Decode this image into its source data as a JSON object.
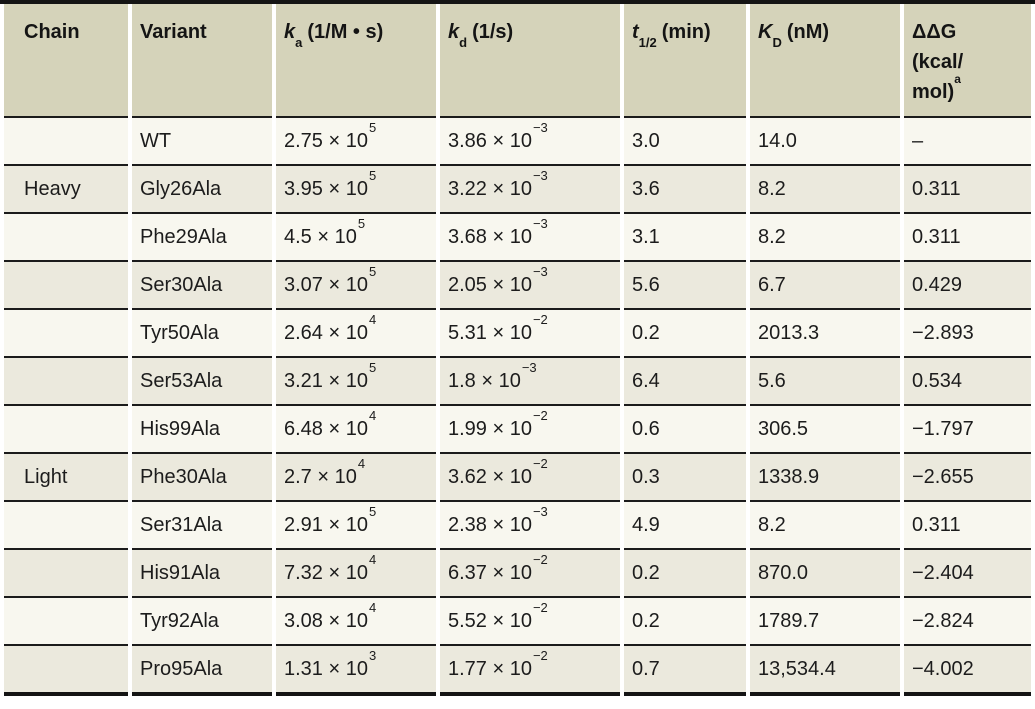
{
  "table": {
    "columns": {
      "chain": "Chain",
      "variant": "Variant",
      "ka": {
        "sym": "k",
        "sub": "a",
        "unit": "(1/M • s)"
      },
      "kd": {
        "sym": "k",
        "sub": "d",
        "unit": "(1/s)"
      },
      "thalf": {
        "sym": "t",
        "sub": "1/2",
        "unit": "(min)"
      },
      "kD": {
        "sym": "K",
        "sub": "D",
        "unit": "(nM)"
      },
      "ddg": {
        "line1": "ΔΔG",
        "line2": "(kcal/",
        "line3": "mol)",
        "sup": "a"
      }
    },
    "rows": [
      {
        "chain": "",
        "variant": "WT",
        "ka_base": "2.75 × 10",
        "ka_exp": "5",
        "kd_base": "3.86 × 10",
        "kd_exp": "−3",
        "t_half": "3.0",
        "kd_nm": "14.0",
        "ddg": "–"
      },
      {
        "chain": "Heavy",
        "variant": "Gly26Ala",
        "ka_base": "3.95 × 10",
        "ka_exp": "5",
        "kd_base": "3.22 × 10",
        "kd_exp": "−3",
        "t_half": "3.6",
        "kd_nm": "8.2",
        "ddg": "0.311"
      },
      {
        "chain": "",
        "variant": "Phe29Ala",
        "ka_base": "4.5 × 10",
        "ka_exp": "5",
        "kd_base": "3.68 × 10",
        "kd_exp": "−3",
        "t_half": "3.1",
        "kd_nm": "8.2",
        "ddg": "0.311"
      },
      {
        "chain": "",
        "variant": "Ser30Ala",
        "ka_base": "3.07 × 10",
        "ka_exp": "5",
        "kd_base": "2.05 × 10",
        "kd_exp": "−3",
        "t_half": "5.6",
        "kd_nm": "6.7",
        "ddg": "0.429"
      },
      {
        "chain": "",
        "variant": "Tyr50Ala",
        "ka_base": "2.64 × 10",
        "ka_exp": "4",
        "kd_base": "5.31 × 10",
        "kd_exp": "−2",
        "t_half": "0.2",
        "kd_nm": "2013.3",
        "ddg": "−2.893"
      },
      {
        "chain": "",
        "variant": "Ser53Ala",
        "ka_base": "3.21 × 10",
        "ka_exp": "5",
        "kd_base": "1.8 × 10",
        "kd_exp": "−3",
        "t_half": "6.4",
        "kd_nm": "5.6",
        "ddg": "0.534"
      },
      {
        "chain": "",
        "variant": "His99Ala",
        "ka_base": "6.48 × 10",
        "ka_exp": "4",
        "kd_base": "1.99 × 10",
        "kd_exp": "−2",
        "t_half": "0.6",
        "kd_nm": "306.5",
        "ddg": "−1.797"
      },
      {
        "chain": "Light",
        "variant": "Phe30Ala",
        "ka_base": "2.7 × 10",
        "ka_exp": "4",
        "kd_base": "3.62 × 10",
        "kd_exp": "−2",
        "t_half": "0.3",
        "kd_nm": "1338.9",
        "ddg": "−2.655"
      },
      {
        "chain": "",
        "variant": "Ser31Ala",
        "ka_base": "2.91 × 10",
        "ka_exp": "5",
        "kd_base": "2.38 × 10",
        "kd_exp": "−3",
        "t_half": "4.9",
        "kd_nm": "8.2",
        "ddg": "0.311"
      },
      {
        "chain": "",
        "variant": "His91Ala",
        "ka_base": "7.32 × 10",
        "ka_exp": "4",
        "kd_base": "6.37 × 10",
        "kd_exp": "−2",
        "t_half": "0.2",
        "kd_nm": "870.0",
        "ddg": "−2.404"
      },
      {
        "chain": "",
        "variant": "Tyr92Ala",
        "ka_base": "3.08 × 10",
        "ka_exp": "4",
        "kd_base": "5.52 × 10",
        "kd_exp": "−2",
        "t_half": "0.2",
        "kd_nm": "1789.7",
        "ddg": "−2.824"
      },
      {
        "chain": "",
        "variant": "Pro95Ala",
        "ka_base": "1.31 × 10",
        "ka_exp": "3",
        "kd_base": "1.77 × 10",
        "kd_exp": "−2",
        "t_half": "0.7",
        "kd_nm": "13,534.4",
        "ddg": "−4.002"
      }
    ],
    "colors": {
      "header_bg": "#d5d3ba",
      "row_light": "#f8f7ef",
      "row_shaded": "#ebe9dd",
      "rule": "#1b1b1b",
      "text": "#1c1c1c"
    }
  }
}
